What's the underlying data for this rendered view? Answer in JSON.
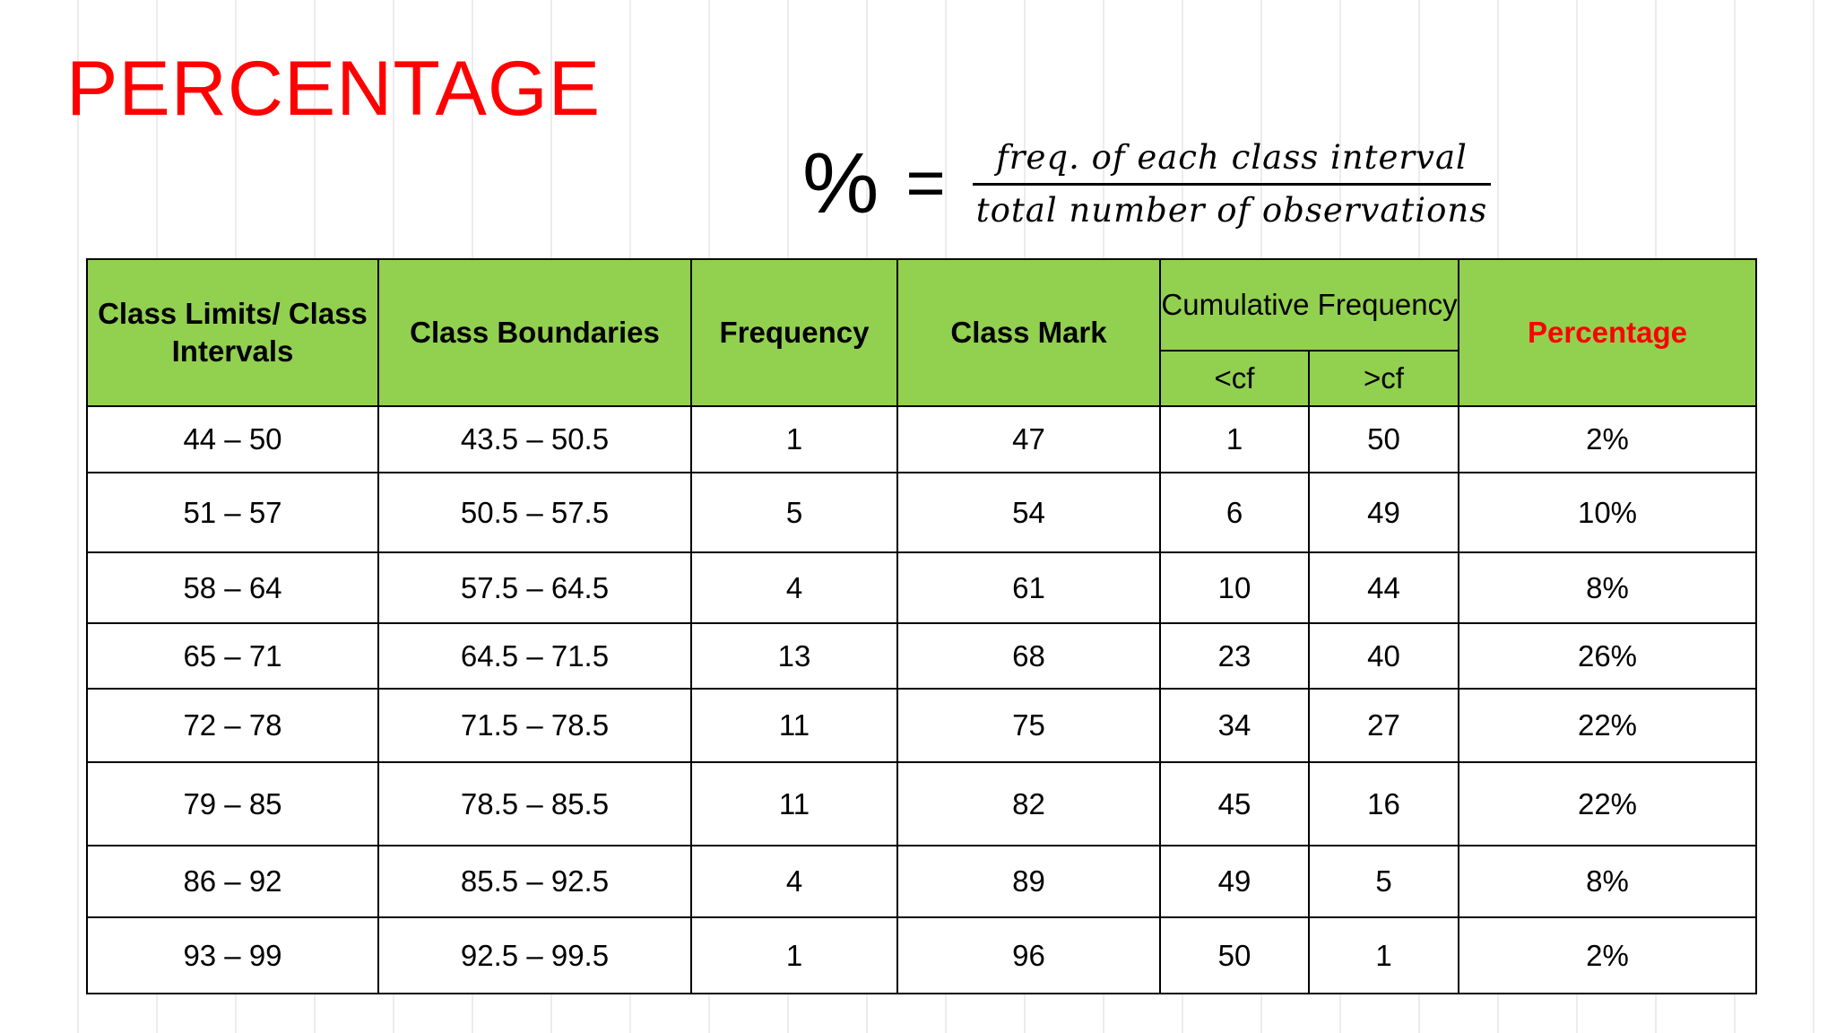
{
  "title": "PERCENTAGE",
  "formula": {
    "lhs": "%",
    "equals": "=",
    "numerator": "freq. of each class interval",
    "denominator": "total number of observations"
  },
  "table": {
    "headers": {
      "class_limits": "Class Limits/ Class Intervals",
      "class_boundaries": "Class Boundaries",
      "frequency": "Frequency",
      "class_mark": "Class Mark",
      "cumulative_frequency": "Cumulative Frequency",
      "less_cf": "<cf",
      "greater_cf": ">cf",
      "percentage": "Percentage"
    },
    "colors": {
      "header_bg": "#92d050",
      "accent_red": "#ff0000"
    },
    "rows": [
      [
        "44 – 50",
        "43.5 – 50.5",
        "1",
        "47",
        "1",
        "50",
        "2%"
      ],
      [
        "51 – 57",
        "50.5 – 57.5",
        "5",
        "54",
        "6",
        "49",
        "10%"
      ],
      [
        "58 – 64",
        "57.5 – 64.5",
        "4",
        "61",
        "10",
        "44",
        "8%"
      ],
      [
        "65 – 71",
        "64.5 – 71.5",
        "13",
        "68",
        "23",
        "40",
        "26%"
      ],
      [
        "72 – 78",
        "71.5 – 78.5",
        "11",
        "75",
        "34",
        "27",
        "22%"
      ],
      [
        "79 – 85",
        "78.5 – 85.5",
        "11",
        "82",
        "45",
        "16",
        "22%"
      ],
      [
        "86 – 92",
        "85.5 – 92.5",
        "4",
        "89",
        "49",
        "5",
        "8%"
      ],
      [
        "93 – 99",
        "92.5 – 99.5",
        "1",
        "96",
        "50",
        "1",
        "2%"
      ]
    ]
  }
}
